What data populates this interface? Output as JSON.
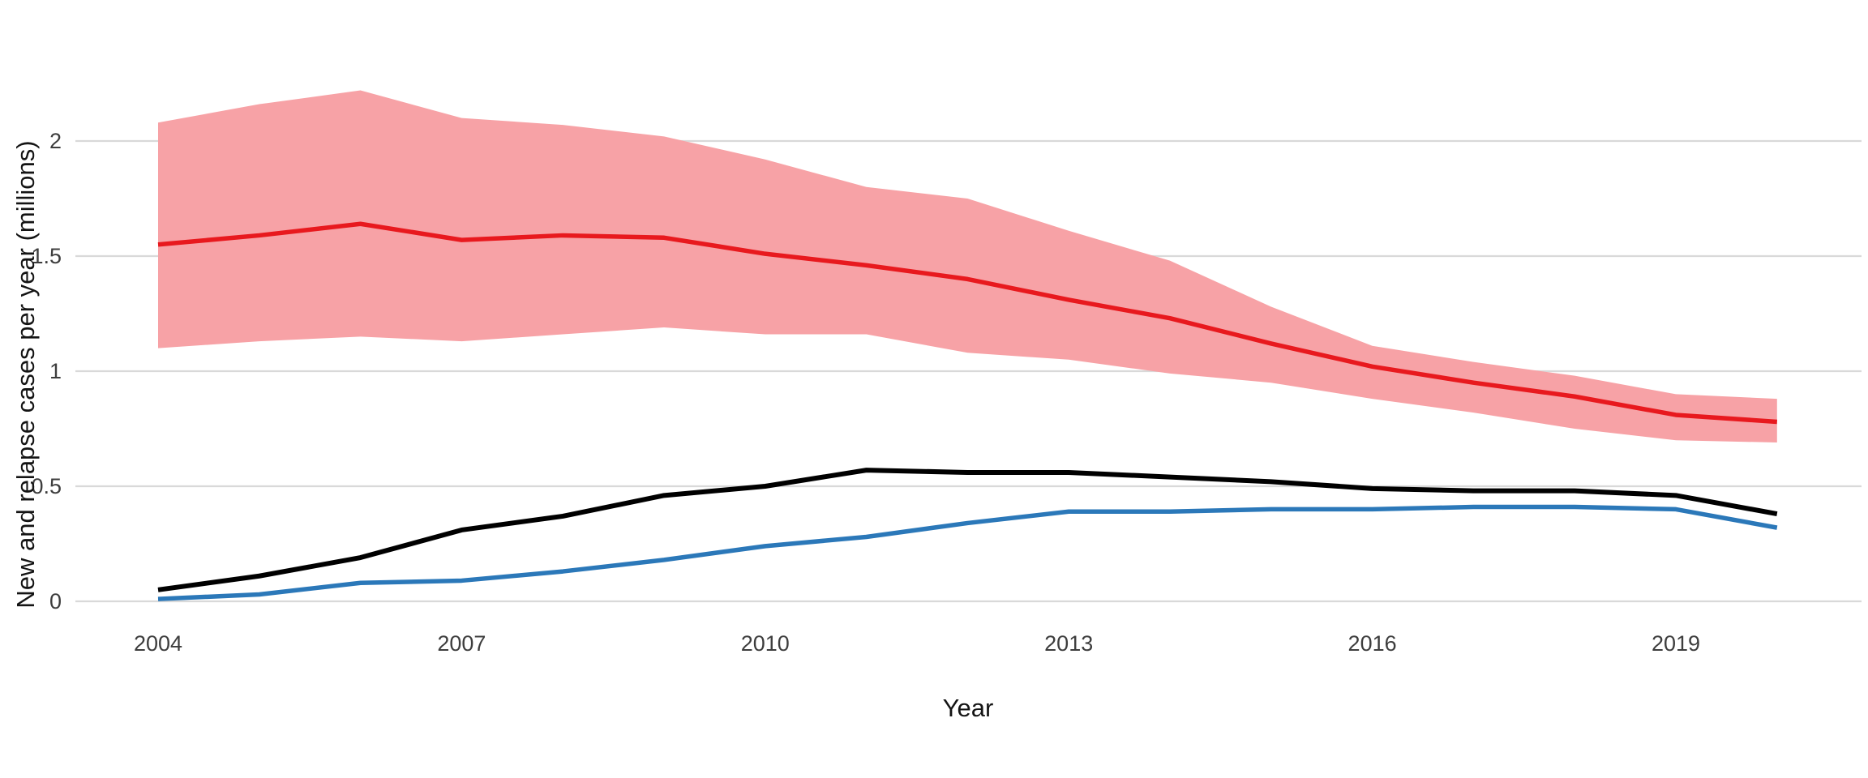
{
  "chart_data": {
    "type": "line",
    "x": [
      2004,
      2005,
      2006,
      2007,
      2008,
      2009,
      2010,
      2011,
      2012,
      2013,
      2014,
      2015,
      2016,
      2017,
      2018,
      2019,
      2020
    ],
    "xlabel": "Year",
    "ylabel": "New and relapse cases per year (millions)",
    "xticks": {
      "values": [
        2004,
        2007,
        2010,
        2013,
        2016,
        2019
      ],
      "labels": [
        "2004",
        "2007",
        "2010",
        "2013",
        "2016",
        "2019"
      ]
    },
    "yticks": {
      "values": [
        0,
        0.5,
        1,
        1.5,
        2
      ],
      "labels": [
        "0",
        "0.5",
        "1",
        "1.5",
        "2"
      ]
    },
    "xlim": [
      2003.2,
      2020.85
    ],
    "ylim": [
      0,
      2.35
    ],
    "grid": "horizontal-major-only",
    "legend": "none",
    "band": {
      "name": "uncertainty-interval",
      "fill": "#F7A2A6",
      "upper": [
        2.08,
        2.16,
        2.22,
        2.1,
        2.07,
        2.02,
        1.92,
        1.8,
        1.75,
        1.61,
        1.48,
        1.28,
        1.11,
        1.04,
        0.98,
        0.9,
        0.88
      ],
      "lower": [
        1.1,
        1.13,
        1.15,
        1.13,
        1.16,
        1.19,
        1.16,
        1.16,
        1.08,
        1.05,
        0.99,
        0.95,
        0.88,
        0.82,
        0.75,
        0.7,
        0.69
      ]
    },
    "series": [
      {
        "name": "red-series",
        "color": "#E8191E",
        "width": 5.5,
        "values": [
          1.55,
          1.59,
          1.64,
          1.57,
          1.59,
          1.58,
          1.51,
          1.46,
          1.4,
          1.31,
          1.23,
          1.12,
          1.02,
          0.95,
          0.89,
          0.81,
          0.78
        ]
      },
      {
        "name": "black-series",
        "color": "#000000",
        "width": 6,
        "values": [
          0.05,
          0.11,
          0.19,
          0.31,
          0.37,
          0.46,
          0.5,
          0.57,
          0.56,
          0.56,
          0.54,
          0.52,
          0.49,
          0.48,
          0.48,
          0.46,
          0.38
        ]
      },
      {
        "name": "blue-series",
        "color": "#2B78B9",
        "width": 5.5,
        "values": [
          0.01,
          0.03,
          0.08,
          0.09,
          0.13,
          0.18,
          0.24,
          0.28,
          0.34,
          0.39,
          0.39,
          0.4,
          0.4,
          0.41,
          0.41,
          0.4,
          0.32
        ]
      }
    ],
    "gridline_color": "#D9D9D9"
  }
}
